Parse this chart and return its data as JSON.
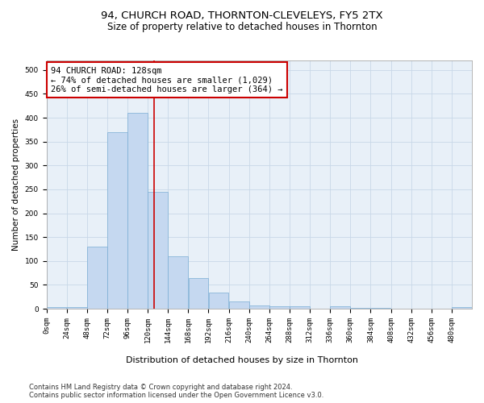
{
  "title": "94, CHURCH ROAD, THORNTON-CLEVELEYS, FY5 2TX",
  "subtitle": "Size of property relative to detached houses in Thornton",
  "xlabel": "Distribution of detached houses by size in Thornton",
  "ylabel": "Number of detached properties",
  "bin_edges": [
    0,
    24,
    48,
    72,
    96,
    120,
    144,
    168,
    192,
    216,
    240,
    264,
    288,
    312,
    336,
    360,
    384,
    408,
    432,
    456,
    480,
    504
  ],
  "bar_heights": [
    3,
    3,
    130,
    370,
    410,
    245,
    110,
    65,
    33,
    15,
    7,
    5,
    5,
    0,
    5,
    1,
    1,
    0,
    0,
    0,
    3
  ],
  "bar_color": "#c5d8f0",
  "bar_edge_color": "#7aadd4",
  "property_size": 128,
  "vline_color": "#cc0000",
  "annotation_text": "94 CHURCH ROAD: 128sqm\n← 74% of detached houses are smaller (1,029)\n26% of semi-detached houses are larger (364) →",
  "annotation_box_color": "#ffffff",
  "annotation_box_edge": "#cc0000",
  "ylim": [
    0,
    520
  ],
  "yticks": [
    0,
    50,
    100,
    150,
    200,
    250,
    300,
    350,
    400,
    450,
    500
  ],
  "grid_color": "#c8d8e8",
  "background_color": "#e8f0f8",
  "footer_text": "Contains HM Land Registry data © Crown copyright and database right 2024.\nContains public sector information licensed under the Open Government Licence v3.0.",
  "title_fontsize": 9.5,
  "subtitle_fontsize": 8.5,
  "xlabel_fontsize": 8,
  "ylabel_fontsize": 7.5,
  "tick_fontsize": 6.5,
  "annotation_fontsize": 7.5,
  "footer_fontsize": 6
}
